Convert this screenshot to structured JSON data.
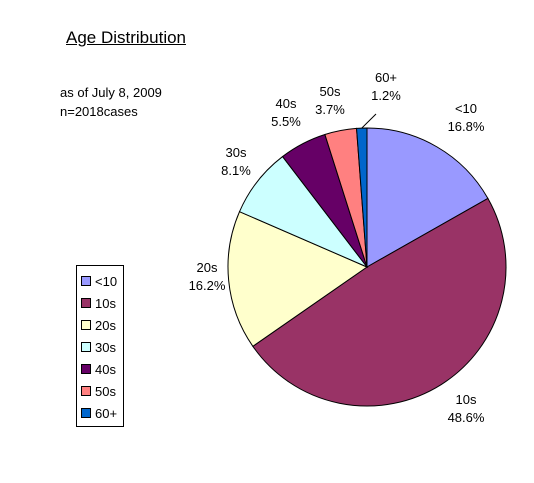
{
  "chart_data": {
    "type": "pie",
    "title": "Age Distribution",
    "notes": [
      "as of July 8, 2009",
      "n=2018cases"
    ],
    "legend_position": "left",
    "categories": [
      "<10",
      "10s",
      "20s",
      "30s",
      "40s",
      "50s",
      "60+"
    ],
    "values": [
      16.8,
      48.6,
      16.2,
      8.1,
      5.5,
      3.7,
      1.2
    ],
    "value_labels": [
      "16.8%",
      "48.6%",
      "16.2%",
      "8.1%",
      "5.5%",
      "3.7%",
      "1.2%"
    ],
    "colors": [
      "#9999FF",
      "#993366",
      "#FFFFCC",
      "#CCFFFF",
      "#660066",
      "#FF8080",
      "#0066CC"
    ]
  }
}
